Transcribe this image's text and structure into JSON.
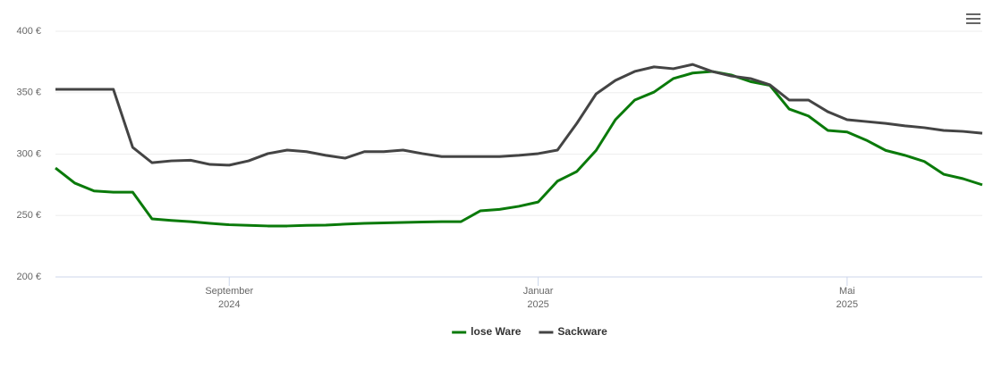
{
  "chart_data": {
    "type": "line",
    "x": [
      "2024-06",
      "2024-07",
      "2024-07",
      "2024-07",
      "2024-07",
      "2024-08",
      "2024-08",
      "2024-08",
      "2024-08",
      "2024-09",
      "2024-09",
      "2024-09",
      "2024-09",
      "2024-10",
      "2024-10",
      "2024-10",
      "2024-10",
      "2024-11",
      "2024-11",
      "2024-11",
      "2024-11",
      "2024-12",
      "2024-12",
      "2024-12",
      "2024-12",
      "2025-01",
      "2025-01",
      "2025-01",
      "2025-01",
      "2025-02",
      "2025-02",
      "2025-02",
      "2025-02",
      "2025-03",
      "2025-03",
      "2025-03",
      "2025-03",
      "2025-04",
      "2025-04",
      "2025-04",
      "2025-04",
      "2025-05",
      "2025-05",
      "2025-05",
      "2025-05",
      "2025-06",
      "2025-06",
      "2025-06",
      "2025-06"
    ],
    "series": [
      {
        "name": "lose Ware",
        "color": "#0a7a0a",
        "values": [
          288.7,
          276.4,
          270,
          269,
          269,
          247.3,
          246,
          245,
          243.6,
          242.5,
          242,
          241.5,
          241.5,
          242,
          242.2,
          243,
          243.6,
          244,
          244.4,
          244.7,
          245,
          245,
          253.8,
          255,
          257.5,
          261,
          278,
          285.8,
          303,
          328,
          344,
          350.5,
          361.5,
          366,
          367.3,
          364.4,
          359,
          356,
          336.7,
          331,
          319.3,
          318,
          311.3,
          303,
          299,
          294,
          283.6,
          280,
          275
        ]
      },
      {
        "name": "Sackware",
        "color": "#444444",
        "values": [
          352.7,
          352.7,
          352.7,
          352.7,
          305.5,
          293,
          294.5,
          295,
          291.6,
          291,
          294.5,
          300.4,
          303.3,
          302,
          299,
          296.7,
          302,
          302,
          303.3,
          300.4,
          298,
          298,
          298,
          298,
          299,
          300.4,
          303.3,
          325,
          349,
          360,
          367.3,
          371,
          369.5,
          373,
          367.3,
          363.6,
          361.5,
          356.4,
          344,
          344,
          334.5,
          328,
          326.5,
          325,
          323,
          321.5,
          319.3,
          318.5,
          317
        ]
      }
    ],
    "ylim": [
      200,
      400
    ],
    "yticks": [
      {
        "value": 200,
        "label": "200 €"
      },
      {
        "value": 250,
        "label": "250 €"
      },
      {
        "value": 300,
        "label": "300 €"
      },
      {
        "value": 350,
        "label": "350 €"
      },
      {
        "value": 400,
        "label": "400 €"
      }
    ],
    "xticks": [
      {
        "value": "2024-09",
        "label": [
          "September",
          "2024"
        ]
      },
      {
        "value": "2025-01",
        "label": [
          "Januar",
          "2025"
        ]
      },
      {
        "value": "2025-05",
        "label": [
          "Mai",
          "2025"
        ]
      }
    ],
    "grid": true,
    "legend": "bottom"
  }
}
